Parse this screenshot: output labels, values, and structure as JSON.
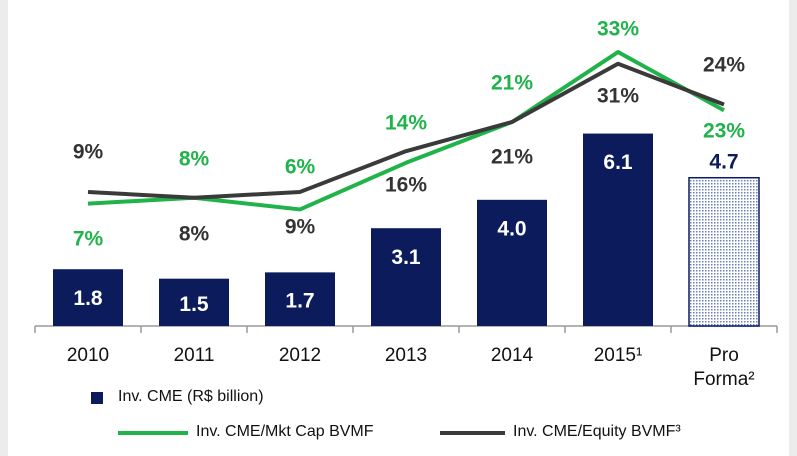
{
  "chart_data": {
    "type": "bar",
    "categories": [
      "2010",
      "2011",
      "2012",
      "2013",
      "2014",
      "2015¹",
      "Pro Forma²"
    ],
    "series": [
      {
        "name": "Inv. CME (R$ billion)",
        "type": "bar",
        "color": "#0b1b5c",
        "values": [
          1.8,
          1.5,
          1.7,
          3.1,
          4.0,
          6.1,
          4.7
        ],
        "value_labels": [
          "1.8",
          "1.5",
          "1.7",
          "3.1",
          "4.0",
          "6.1",
          "4.7"
        ],
        "patterned": [
          false,
          false,
          false,
          false,
          false,
          false,
          true
        ]
      },
      {
        "name": "Inv. CME/Mkt Cap BVMF",
        "type": "line",
        "axis": "y2",
        "color": "#1fb34a",
        "values": [
          7,
          8,
          6,
          14,
          21,
          33,
          23
        ],
        "value_labels": [
          "7%",
          "8%",
          "6%",
          "14%",
          "21%",
          "33%",
          "23%"
        ]
      },
      {
        "name": "Inv. CME/Equity BVMF³",
        "type": "line",
        "axis": "y2",
        "color": "#3a3a3a",
        "values": [
          9,
          8,
          9,
          16,
          21,
          31,
          24
        ],
        "value_labels": [
          "9%",
          "8%",
          "9%",
          "16%",
          "21%",
          "31%",
          "24%"
        ]
      }
    ],
    "ylim": [
      0,
      9.7
    ],
    "y2lim": [
      -14,
      38.5
    ],
    "grid": false
  }
}
